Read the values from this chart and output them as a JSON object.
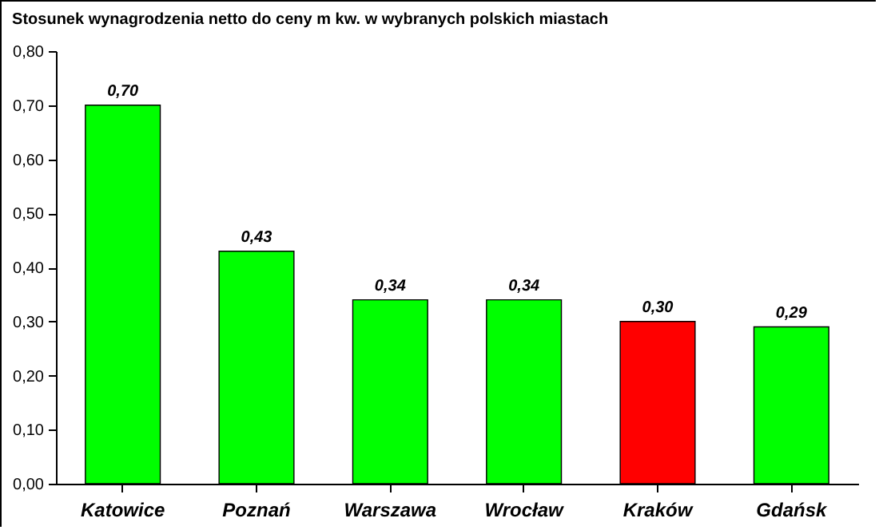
{
  "chart_data": {
    "type": "bar",
    "title": "Stosunek wynagrodzenia netto do ceny m kw. w wybranych polskich miastach",
    "categories": [
      "Katowice",
      "Poznań",
      "Warszawa",
      "Wrocław",
      "Kraków",
      "Gdańsk"
    ],
    "values": [
      0.7,
      0.43,
      0.34,
      0.34,
      0.3,
      0.29
    ],
    "value_labels": [
      "0,70",
      "0,43",
      "0,34",
      "0,34",
      "0,30",
      "0,29"
    ],
    "colors": [
      "#00ff00",
      "#00ff00",
      "#00ff00",
      "#00ff00",
      "#ff0000",
      "#00ff00"
    ],
    "ylim": [
      0,
      0.8
    ],
    "yticks": [
      {
        "value": 0,
        "label": "0,00"
      },
      {
        "value": 0.1,
        "label": "0,10"
      },
      {
        "value": 0.2,
        "label": "0,20"
      },
      {
        "value": 0.3,
        "label": "0,30"
      },
      {
        "value": 0.4,
        "label": "0,40"
      },
      {
        "value": 0.5,
        "label": "0,50"
      },
      {
        "value": 0.6,
        "label": "0,60"
      },
      {
        "value": 0.7,
        "label": "0,70"
      },
      {
        "value": 0.8,
        "label": "0,80"
      }
    ],
    "grid": false
  }
}
